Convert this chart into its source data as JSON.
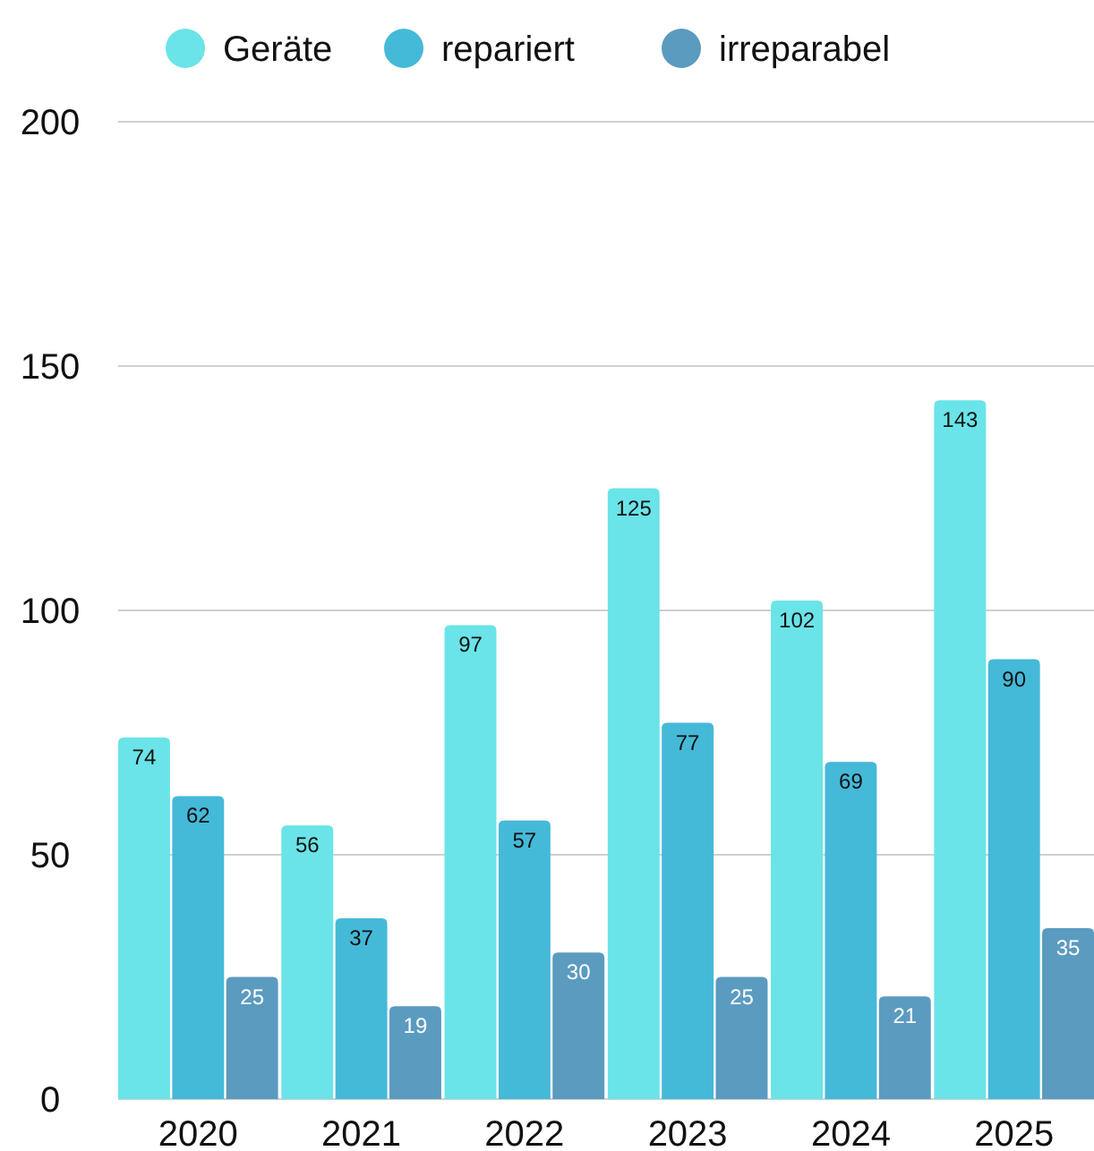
{
  "chart_data": {
    "type": "bar",
    "categories": [
      "2020",
      "2021",
      "2022",
      "2023",
      "2024",
      "2025"
    ],
    "series": [
      {
        "name": "Geräte",
        "color": "#6ae4e8",
        "values": [
          74,
          56,
          97,
          125,
          102,
          143
        ]
      },
      {
        "name": "repariert",
        "color": "#45b9d8",
        "values": [
          62,
          37,
          57,
          77,
          69,
          90
        ]
      },
      {
        "name": "irreparabel",
        "color": "#5b9bc0",
        "values": [
          25,
          19,
          30,
          25,
          21,
          35
        ]
      }
    ],
    "ylim": [
      0,
      200
    ],
    "yticks": [
      0,
      50,
      100,
      150,
      200
    ],
    "grid": "y",
    "legend": "top",
    "data_labels": true
  }
}
